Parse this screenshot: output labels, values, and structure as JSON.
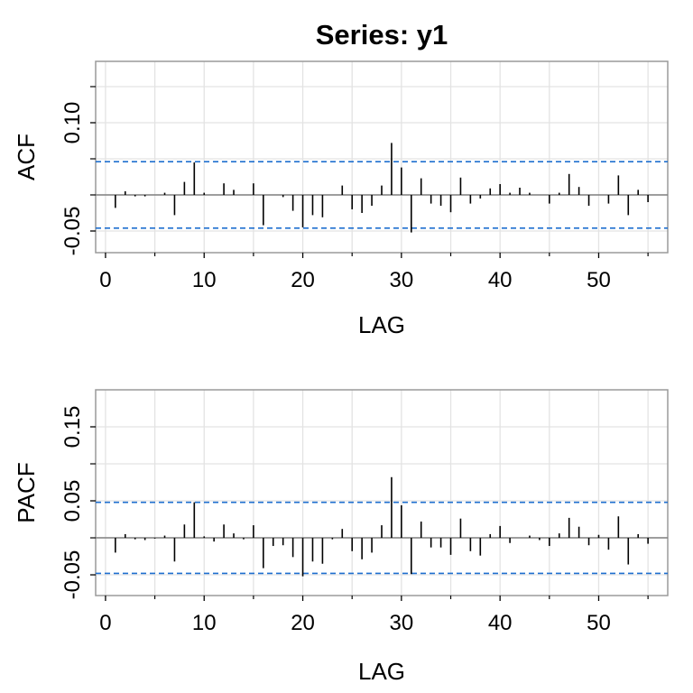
{
  "title": "Series:  y1",
  "colors": {
    "bar": "#000000",
    "zero_line": "#808080",
    "conf_line": "#1f6fcf",
    "grid": "#e3e3e3",
    "frame": "#9a9a9a"
  },
  "chart_data": [
    {
      "type": "bar",
      "name": "acf",
      "ylabel": "ACF",
      "xlabel": "LAG",
      "xlim": [
        -1,
        57
      ],
      "ylim": [
        -0.08,
        0.185
      ],
      "x_ticks": [
        0,
        10,
        20,
        30,
        40,
        50
      ],
      "x_ticks_minor": [
        5,
        15,
        25,
        35,
        45,
        55
      ],
      "y_ticks": [
        -0.05,
        0.1
      ],
      "y_ticks_minor": [
        0.0,
        0.05,
        0.15
      ],
      "y_tick_labels": [
        "-0.05",
        "0.10"
      ],
      "conf_bounds": [
        0.046,
        -0.046
      ],
      "grid": true,
      "lags": [
        1,
        2,
        3,
        4,
        5,
        6,
        7,
        8,
        9,
        10,
        11,
        12,
        13,
        14,
        15,
        16,
        17,
        18,
        19,
        20,
        21,
        22,
        23,
        24,
        25,
        26,
        27,
        28,
        29,
        30,
        31,
        32,
        33,
        34,
        35,
        36,
        37,
        38,
        39,
        40,
        41,
        42,
        43,
        44,
        45,
        46,
        47,
        48,
        49,
        50,
        51,
        52,
        53,
        54,
        55
      ],
      "values": [
        -0.018,
        0.005,
        -0.002,
        -0.002,
        0.0,
        0.003,
        -0.028,
        0.018,
        0.045,
        0.003,
        0.0,
        0.016,
        0.007,
        0.0,
        0.016,
        -0.042,
        0.0,
        -0.003,
        -0.022,
        -0.045,
        -0.028,
        -0.031,
        0.0,
        0.013,
        -0.02,
        -0.025,
        -0.015,
        0.013,
        0.072,
        0.038,
        -0.052,
        0.023,
        -0.012,
        -0.015,
        -0.024,
        0.024,
        -0.012,
        -0.005,
        0.009,
        0.015,
        0.003,
        0.01,
        0.003,
        0.0,
        -0.012,
        0.003,
        0.029,
        0.011,
        -0.015,
        0.0,
        -0.012,
        0.027,
        -0.028,
        0.007,
        -0.01
      ]
    },
    {
      "type": "bar",
      "name": "pacf",
      "ylabel": "PACF",
      "xlabel": "LAG",
      "xlim": [
        -1,
        57
      ],
      "ylim": [
        -0.078,
        0.2
      ],
      "x_ticks": [
        0,
        10,
        20,
        30,
        40,
        50
      ],
      "x_ticks_minor": [
        5,
        15,
        25,
        35,
        45,
        55
      ],
      "y_ticks": [
        -0.05,
        0.05,
        0.15
      ],
      "y_ticks_minor": [
        0.0,
        0.1
      ],
      "y_tick_labels": [
        "-0.05",
        "0.05",
        "0.15"
      ],
      "conf_bounds": [
        0.048,
        -0.048
      ],
      "grid": true,
      "lags": [
        1,
        2,
        3,
        4,
        5,
        6,
        7,
        8,
        9,
        10,
        11,
        12,
        13,
        14,
        15,
        16,
        17,
        18,
        19,
        20,
        21,
        22,
        23,
        24,
        25,
        26,
        27,
        28,
        29,
        30,
        31,
        32,
        33,
        34,
        35,
        36,
        37,
        38,
        39,
        40,
        41,
        42,
        43,
        44,
        45,
        46,
        47,
        48,
        49,
        50,
        51,
        52,
        53,
        54,
        55
      ],
      "values": [
        -0.02,
        0.005,
        -0.002,
        -0.003,
        -0.001,
        0.003,
        -0.032,
        0.018,
        0.048,
        0.002,
        -0.005,
        0.018,
        0.006,
        -0.002,
        0.017,
        -0.041,
        -0.011,
        -0.01,
        -0.026,
        -0.052,
        -0.032,
        -0.035,
        -0.002,
        0.012,
        -0.018,
        -0.029,
        -0.02,
        0.017,
        0.082,
        0.044,
        -0.049,
        0.022,
        -0.013,
        -0.013,
        -0.023,
        0.026,
        -0.018,
        -0.024,
        0.005,
        0.016,
        -0.007,
        0.0,
        0.003,
        -0.003,
        -0.011,
        0.006,
        0.027,
        0.015,
        -0.01,
        0.004,
        -0.016,
        0.029,
        -0.036,
        0.005,
        -0.008
      ]
    }
  ]
}
